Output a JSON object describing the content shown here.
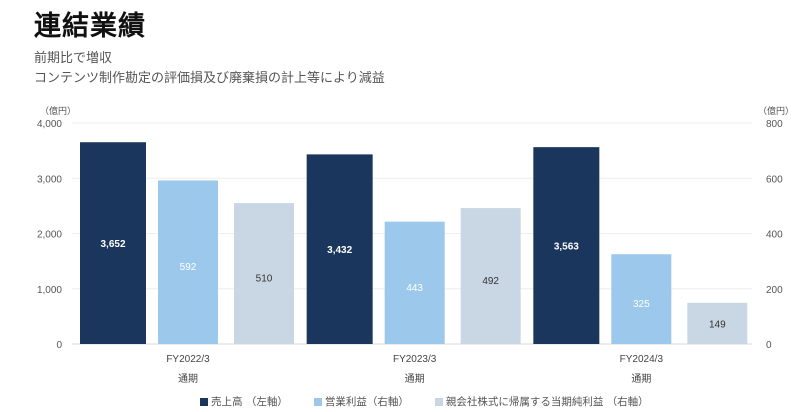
{
  "header": {
    "title": "連結業績",
    "subtitle_lines": [
      "前期比で増収",
      "コンテンツ制作勘定の評価損及び廃棄損の計上等により減益"
    ]
  },
  "chart_data": {
    "type": "bar",
    "categories": [
      "FY2022/3",
      "FY2023/3",
      "FY2024/3"
    ],
    "category_sublabel": "通期",
    "series": [
      {
        "name": "売上高 （左軸）",
        "axis": "left",
        "values": [
          3652,
          3432,
          3563
        ],
        "labels": [
          "3,652",
          "3,432",
          "3,563"
        ],
        "color": "#1b365d"
      },
      {
        "name": "営業利益（右軸）",
        "axis": "right",
        "values": [
          592,
          443,
          325
        ],
        "labels": [
          "592",
          "443",
          "325"
        ],
        "color": "#9cc8ec"
      },
      {
        "name": "親会社株式に帰属する当期純利益 （右軸）",
        "axis": "right",
        "values": [
          510,
          492,
          149
        ],
        "labels": [
          "510",
          "492",
          "149"
        ],
        "color": "#c8d7e3"
      }
    ],
    "left_axis": {
      "unit": "（億円）",
      "ylim": [
        0,
        4000
      ],
      "ticks": [
        "0",
        "1,000",
        "2,000",
        "3,000",
        "4,000"
      ]
    },
    "right_axis": {
      "unit": "（億円）",
      "ylim": [
        0,
        800
      ],
      "ticks": [
        "0",
        "200",
        "400",
        "600",
        "800"
      ]
    },
    "grid": true,
    "legend": "bottom"
  }
}
